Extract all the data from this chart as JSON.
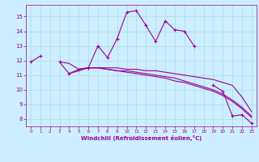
{
  "x_values": [
    0,
    1,
    2,
    3,
    4,
    5,
    6,
    7,
    8,
    9,
    10,
    11,
    12,
    13,
    14,
    15,
    16,
    17,
    18,
    19,
    20,
    21,
    22,
    23
  ],
  "series1": [
    11.9,
    12.3,
    null,
    11.9,
    11.1,
    11.4,
    11.5,
    13.0,
    12.2,
    13.5,
    15.3,
    15.4,
    14.4,
    13.3,
    14.7,
    14.1,
    14.0,
    13.0,
    null,
    10.3,
    9.9,
    8.2,
    8.3,
    7.7
  ],
  "series2": [
    12.0,
    null,
    null,
    11.9,
    11.8,
    11.4,
    11.5,
    11.5,
    11.5,
    11.5,
    11.4,
    11.4,
    11.3,
    11.3,
    11.2,
    11.1,
    11.0,
    10.9,
    10.8,
    10.7,
    10.5,
    10.3,
    9.5,
    8.5
  ],
  "series3": [
    12.0,
    null,
    null,
    null,
    11.1,
    11.3,
    11.5,
    11.5,
    11.4,
    11.3,
    11.3,
    11.2,
    11.1,
    11.0,
    10.9,
    10.8,
    10.6,
    10.4,
    10.2,
    10.0,
    9.7,
    9.3,
    8.8,
    8.2
  ],
  "series4": [
    12.0,
    null,
    null,
    null,
    null,
    11.4,
    11.5,
    11.5,
    11.4,
    11.3,
    11.2,
    11.1,
    11.0,
    10.9,
    10.8,
    10.6,
    10.5,
    10.3,
    10.1,
    9.9,
    9.6,
    9.2,
    8.7,
    8.1
  ],
  "line_color": "#990099",
  "bg_color": "#cceeff",
  "grid_color": "#aadddd",
  "xlabel": "Windchill (Refroidissement éolien,°C)",
  "ylim": [
    7.5,
    15.8
  ],
  "xlim": [
    -0.5,
    23.5
  ],
  "yticks": [
    8,
    9,
    10,
    11,
    12,
    13,
    14,
    15
  ],
  "xticks": [
    0,
    1,
    2,
    3,
    4,
    5,
    6,
    7,
    8,
    9,
    10,
    11,
    12,
    13,
    14,
    15,
    16,
    17,
    18,
    19,
    20,
    21,
    22,
    23
  ]
}
